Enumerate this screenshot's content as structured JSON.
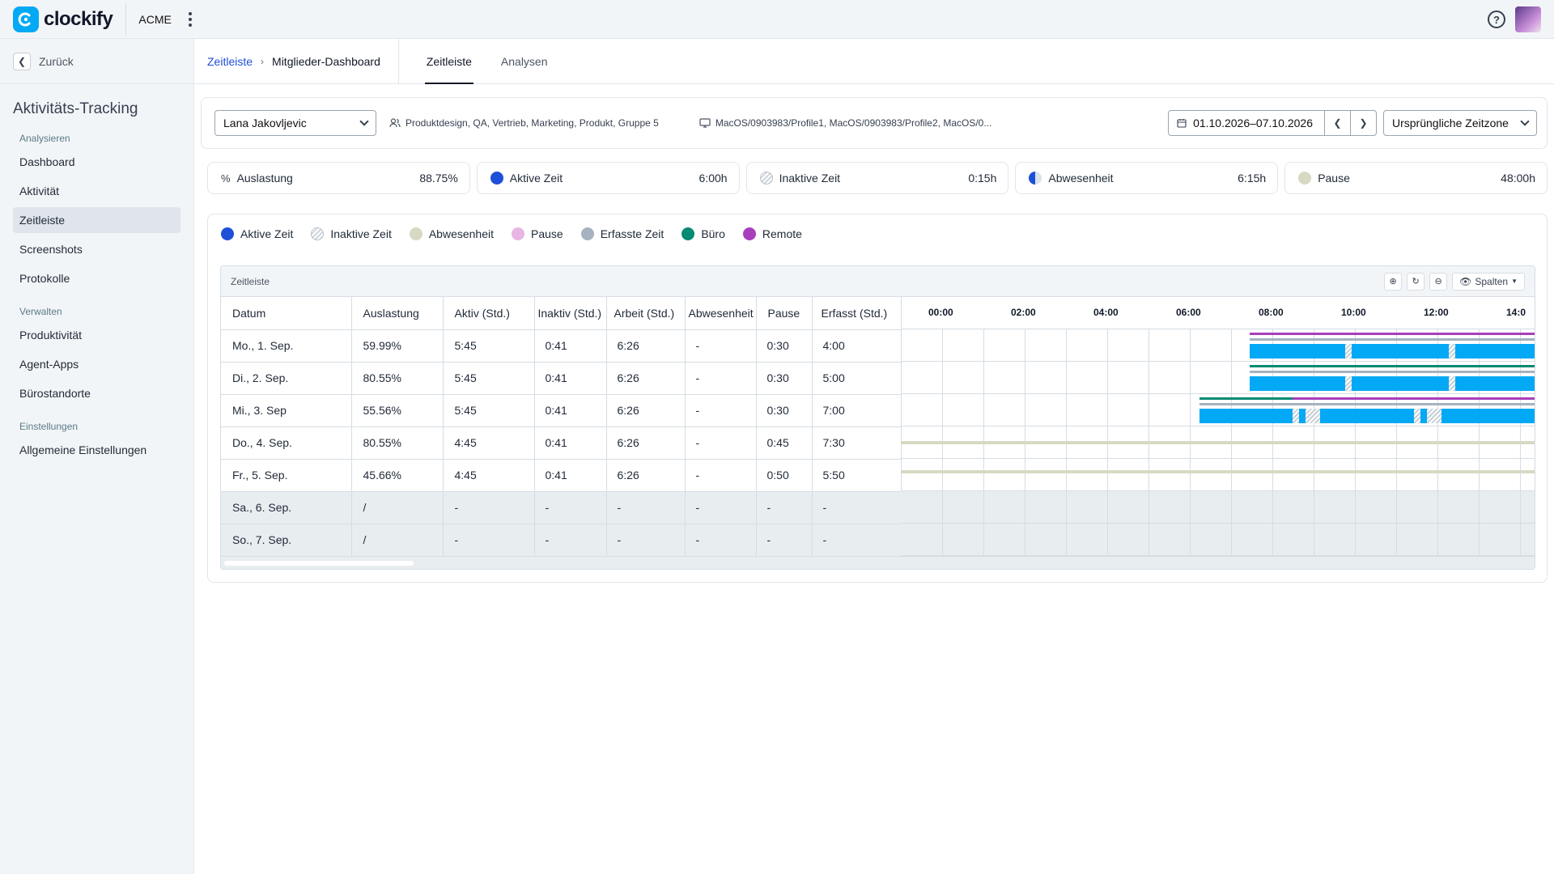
{
  "app": {
    "logo_text": "clockify",
    "workspace": "ACME"
  },
  "icons": {
    "logo": "clockify-logo-icon",
    "menu": "kebab-menu-icon",
    "help": "help-icon",
    "avatar": "user-avatar"
  },
  "sidebar": {
    "back_label": "Zurück",
    "title": "Aktivitäts-Tracking",
    "sections": [
      {
        "label": "Analysieren",
        "items": [
          "Dashboard",
          "Aktivität",
          "Zeitleiste",
          "Screenshots",
          "Protokolle"
        ]
      },
      {
        "label": "Verwalten",
        "items": [
          "Produktivität",
          "Agent-Apps",
          "Bürostandorte"
        ]
      },
      {
        "label": "Einstellungen",
        "items": [
          "Allgemeine Einstellungen"
        ]
      }
    ],
    "active_item": "Zeitleiste"
  },
  "header": {
    "breadcrumb_link": "Zeitleiste",
    "breadcrumb_current": "Mitglieder-Dashboard",
    "tabs": [
      "Zeitleiste",
      "Analysen"
    ],
    "active_tab": "Zeitleiste"
  },
  "filters": {
    "member": "Lana Jakovljevic",
    "groups": "Produktdesign, QA, Vertrieb, Marketing, Produkt, Gruppe 5",
    "devices": "MacOS/0903983/Profile1, MacOS/0903983/Profile2, MacOS/0...",
    "date_range": "01.10.2026–07.10.2026",
    "timezone": "Ursprüngliche Zeitzone"
  },
  "stats": [
    {
      "label": "Auslastung",
      "value": "88.75%",
      "icon": "percent-icon"
    },
    {
      "label": "Aktive Zeit",
      "value": "6:00h",
      "icon": "active-dot"
    },
    {
      "label": "Inaktive Zeit",
      "value": "0:15h",
      "icon": "inactive-dot"
    },
    {
      "label": "Abwesenheit",
      "value": "6:15h",
      "icon": "absence-dot"
    },
    {
      "label": "Pause",
      "value": "48:00h",
      "icon": "pause-dot"
    }
  ],
  "legend": [
    {
      "label": "Aktive Zeit",
      "color": "#1d4fd8"
    },
    {
      "label": "Inaktive Zeit",
      "color": "#cfd6dc"
    },
    {
      "label": "Abwesenheit",
      "color": "#d7d9c2"
    },
    {
      "label": "Pause",
      "color": "#e8b5e4"
    },
    {
      "label": "Erfasste Zeit",
      "color": "#a4b3bf"
    },
    {
      "label": "Büro",
      "color": "#058a73"
    },
    {
      "label": "Remote",
      "color": "#a83fbd"
    }
  ],
  "timeline": {
    "title": "Zeitleiste",
    "columns_button": "Spalten",
    "headers": [
      "Datum",
      "Auslastung",
      "Aktiv (Std.)",
      "Inaktiv (Std.)",
      "Arbeit (Std.)",
      "Abwesenheit",
      "Pause",
      "Erfasst (Std.)"
    ],
    "hours": [
      "00:00",
      "02:00",
      "04:00",
      "06:00",
      "08:00",
      "10:00",
      "12:00",
      "14:0"
    ],
    "rows": [
      {
        "date": "Mo., 1. Sep.",
        "util": "59.99%",
        "active": "5:45",
        "inactive": "0:41",
        "work": "6:26",
        "absence": "-",
        "pause": "0:30",
        "tracked": "4:00",
        "weekend": false
      },
      {
        "date": "Di., 2. Sep.",
        "util": "80.55%",
        "active": "5:45",
        "inactive": "0:41",
        "work": "6:26",
        "absence": "-",
        "pause": "0:30",
        "tracked": "5:00",
        "weekend": false
      },
      {
        "date": "Mi., 3. Sep",
        "util": "55.56%",
        "active": "5:45",
        "inactive": "0:41",
        "work": "6:26",
        "absence": "-",
        "pause": "0:30",
        "tracked": "7:00",
        "weekend": false
      },
      {
        "date": "Do., 4. Sep.",
        "util": "80.55%",
        "active": "4:45",
        "inactive": "0:41",
        "work": "6:26",
        "absence": "-",
        "pause": "0:45",
        "tracked": "7:30",
        "weekend": false
      },
      {
        "date": "Fr., 5. Sep.",
        "util": "45.66%",
        "active": "4:45",
        "inactive": "0:41",
        "work": "6:26",
        "absence": "-",
        "pause": "0:50",
        "tracked": "5:50",
        "weekend": false
      },
      {
        "date": "Sa., 6. Sep.",
        "util": "/",
        "active": "-",
        "inactive": "-",
        "work": "-",
        "absence": "-",
        "pause": "-",
        "tracked": "-",
        "weekend": true
      },
      {
        "date": "So., 7. Sep.",
        "util": "/",
        "active": "-",
        "inactive": "-",
        "work": "-",
        "absence": "-",
        "pause": "-",
        "tracked": "-",
        "weekend": true
      }
    ]
  }
}
